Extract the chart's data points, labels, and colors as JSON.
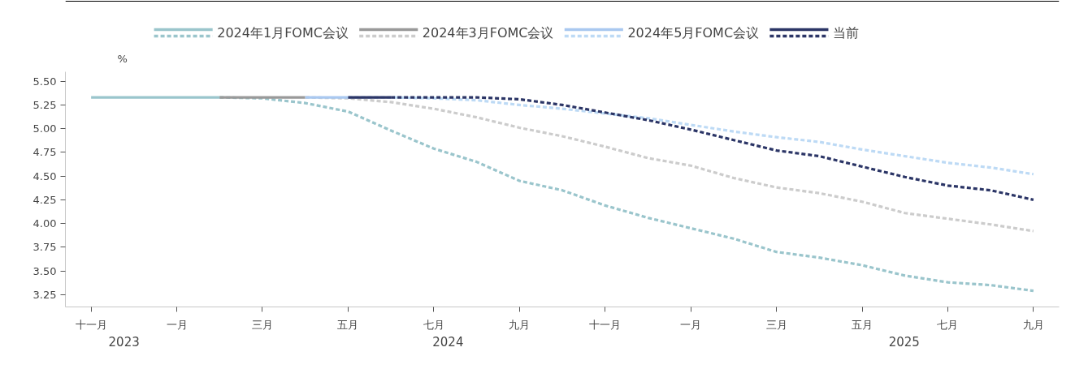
{
  "chart_data": {
    "type": "line",
    "ylabel": "%",
    "legend": "top",
    "grid": false,
    "categories": [
      "十一月",
      null,
      "一月",
      null,
      "三月",
      null,
      "五月",
      null,
      "七月",
      null,
      "九月",
      null,
      "十一月",
      null,
      "一月",
      null,
      "三月",
      null,
      "五月",
      null,
      "七月",
      null,
      "九月"
    ],
    "annotations": [
      "2023",
      "2024",
      "2025"
    ],
    "ylim": [
      3.12,
      5.6
    ],
    "yticks": [
      {
        "value": 3.25,
        "label": "3.25"
      },
      {
        "value": 3.5,
        "label": "3.50"
      },
      {
        "value": 3.75,
        "label": "3.75"
      },
      {
        "value": 4.0,
        "label": "4.00"
      },
      {
        "value": 4.25,
        "label": "4.25"
      },
      {
        "value": 4.5,
        "label": "4.50"
      },
      {
        "value": 4.75,
        "label": "4.75"
      },
      {
        "value": 5.0,
        "label": "5.00"
      },
      {
        "value": 5.25,
        "label": "5.25"
      },
      {
        "value": 5.5,
        "label": "5.50"
      }
    ],
    "series": [
      {
        "name": "2024年1月FOMC会议",
        "color": "#9ac5cc",
        "line_style": "solid",
        "values": [
          5.33,
          5.33,
          5.33,
          5.33,
          null,
          null,
          null,
          null,
          null,
          null,
          null,
          null,
          null,
          null,
          null,
          null,
          null,
          null,
          null,
          null,
          null,
          null,
          null
        ]
      },
      {
        "color": "#9ac5cc",
        "line_style": "dashed",
        "values": [
          null,
          null,
          null,
          5.33,
          5.32,
          5.27,
          5.18,
          4.98,
          4.79,
          4.65,
          4.45,
          4.35,
          4.19,
          4.06,
          3.95,
          3.84,
          3.7,
          3.64,
          3.56,
          3.45,
          3.38,
          3.35,
          3.29
        ]
      },
      {
        "name": "2024年3月FOMC会议",
        "color": "#999999",
        "line_style": "solid",
        "values": [
          null,
          null,
          null,
          5.33,
          5.33,
          5.33,
          null,
          null,
          null,
          null,
          null,
          null,
          null,
          null,
          null,
          null,
          null,
          null,
          null,
          null,
          null,
          null,
          null
        ]
      },
      {
        "color": "#cccccc",
        "line_style": "dashed",
        "values": [
          null,
          null,
          null,
          null,
          null,
          5.33,
          5.32,
          5.28,
          5.21,
          5.12,
          5.01,
          4.92,
          4.81,
          4.69,
          4.61,
          4.48,
          4.38,
          4.32,
          4.23,
          4.11,
          4.05,
          3.99,
          3.92
        ]
      },
      {
        "name": "2024年5月FOMC会议",
        "color": "#a9c8f0",
        "line_style": "solid",
        "values": [
          null,
          null,
          null,
          null,
          null,
          5.33,
          5.33,
          null,
          null,
          null,
          null,
          null,
          null,
          null,
          null,
          null,
          null,
          null,
          null,
          null,
          null,
          null,
          null
        ]
      },
      {
        "color": "#bddaf5",
        "line_style": "dashed",
        "values": [
          null,
          null,
          null,
          null,
          null,
          null,
          5.33,
          5.33,
          5.32,
          5.3,
          5.25,
          5.21,
          5.16,
          5.11,
          5.04,
          4.97,
          4.91,
          4.86,
          4.78,
          4.71,
          4.64,
          4.59,
          4.52
        ]
      },
      {
        "name": "当前",
        "color": "#2b3566",
        "line_style": "solid",
        "values": [
          null,
          null,
          null,
          null,
          null,
          null,
          5.33,
          5.33,
          null,
          null,
          null,
          null,
          null,
          null,
          null,
          null,
          null,
          null,
          null,
          null,
          null,
          null,
          null
        ]
      },
      {
        "color": "#2b3566",
        "line_style": "dashed",
        "values": [
          null,
          null,
          null,
          null,
          null,
          null,
          null,
          5.33,
          5.33,
          5.33,
          5.31,
          5.25,
          5.17,
          5.09,
          4.99,
          4.88,
          4.77,
          4.71,
          4.6,
          4.49,
          4.4,
          4.35,
          4.25
        ]
      }
    ]
  }
}
